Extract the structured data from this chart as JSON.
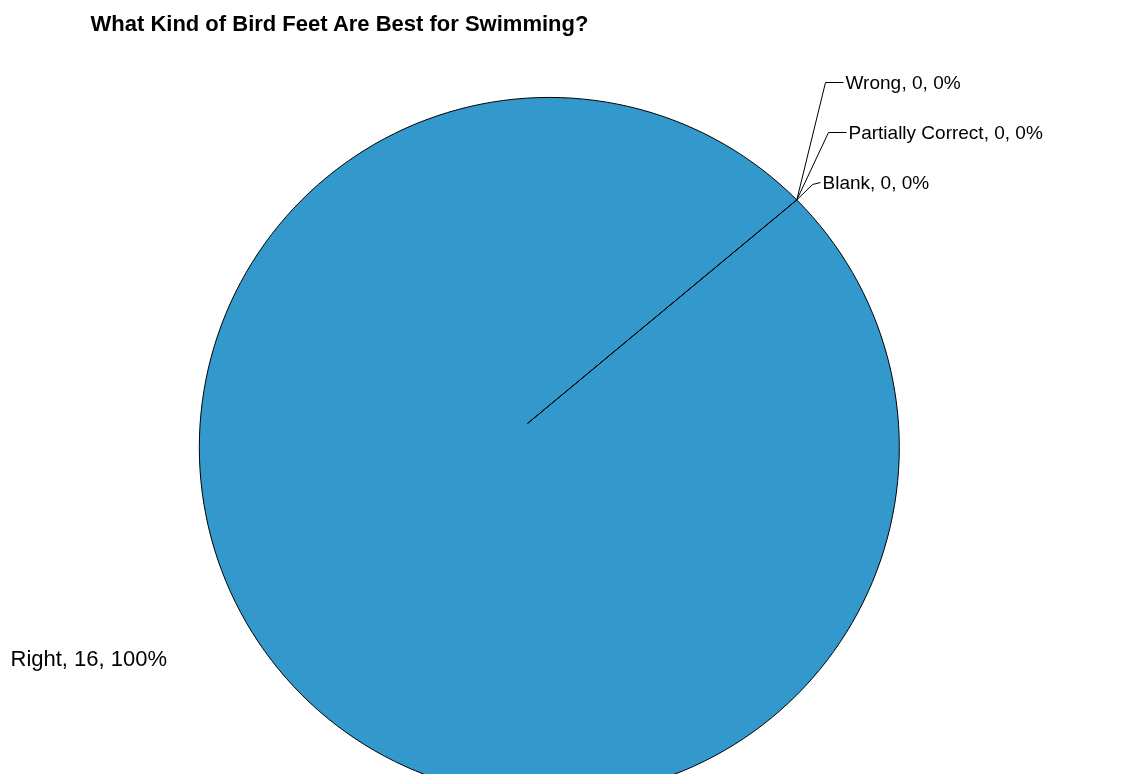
{
  "chart_data": {
    "type": "pie",
    "title": "What Kind of Bird Feet Are Best for Swimming?",
    "categories": [
      "Right",
      "Wrong",
      "Partially Correct",
      "Blank"
    ],
    "values": [
      16,
      0,
      0,
      0
    ],
    "colors": [
      "#3399cc",
      "#993366",
      "#ffffcc",
      "#ccffff"
    ],
    "value_labels": [
      ", 16, 100%",
      ", 0, 0%",
      ", 0, 0%",
      ", 0, 0%"
    ]
  }
}
